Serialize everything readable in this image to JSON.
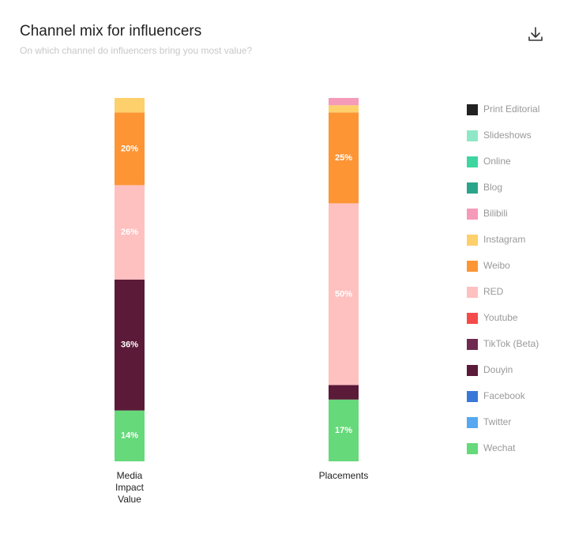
{
  "chart_data": {
    "type": "stacked_bar",
    "title": "Channel mix for influencers",
    "subtitle": "On which channel do influencers bring you most value?",
    "categories": [
      "Media Impact Value",
      "Placements"
    ],
    "ylim": [
      0,
      100
    ],
    "series": [
      {
        "name": "Print Editorial",
        "color": "#222222",
        "values": [
          0,
          0
        ]
      },
      {
        "name": "Slideshows",
        "color": "#8ee8c8",
        "values": [
          0,
          0
        ]
      },
      {
        "name": "Online",
        "color": "#3dd6a0",
        "values": [
          0,
          0
        ]
      },
      {
        "name": "Blog",
        "color": "#2aa58a",
        "values": [
          0,
          0
        ]
      },
      {
        "name": "Bilibili",
        "color": "#f59ab8",
        "values": [
          0,
          2
        ]
      },
      {
        "name": "Instagram",
        "color": "#fdd06c",
        "values": [
          4,
          2
        ]
      },
      {
        "name": "Weibo",
        "color": "#fd9535",
        "values": [
          20,
          25
        ],
        "value_labels": [
          "20%",
          "25%"
        ]
      },
      {
        "name": "RED",
        "color": "#ffc0c0",
        "values": [
          26,
          50
        ],
        "value_labels": [
          "26%",
          "50%"
        ]
      },
      {
        "name": "Youtube",
        "color": "#f44a4a",
        "values": [
          0,
          0
        ]
      },
      {
        "name": "TikTok (Beta)",
        "color": "#6e2a50",
        "values": [
          0,
          0
        ]
      },
      {
        "name": "Douyin",
        "color": "#5a1a38",
        "values": [
          36,
          4
        ],
        "value_labels": [
          "36%",
          null
        ]
      },
      {
        "name": "Facebook",
        "color": "#3a78d8",
        "values": [
          0,
          0
        ]
      },
      {
        "name": "Twitter",
        "color": "#56a8f0",
        "values": [
          0,
          0
        ]
      },
      {
        "name": "Wechat",
        "color": "#66d97a",
        "values": [
          14,
          17
        ],
        "value_labels": [
          "14%",
          "17%"
        ]
      }
    ]
  }
}
